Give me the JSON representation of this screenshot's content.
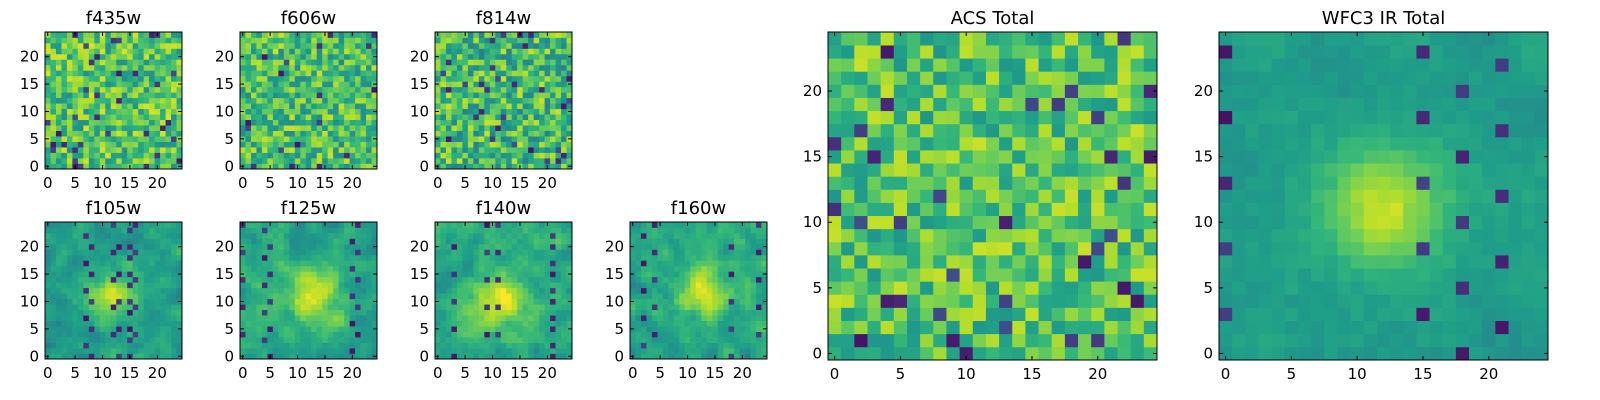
{
  "chart_data": [
    {
      "type": "heatmap",
      "title": "f435w",
      "xlim": [
        -0.5,
        24.5
      ],
      "ylim": [
        -0.5,
        24.5
      ],
      "xticks": [
        0,
        5,
        10,
        15,
        20
      ],
      "yticks": [
        0,
        5,
        10,
        15,
        20
      ],
      "origin": "lower",
      "colormap": "viridis",
      "grid": false,
      "pattern": "noise",
      "center": [
        12,
        12
      ],
      "mean_level": 0.72,
      "spread": 0.22,
      "seed": 11
    },
    {
      "type": "heatmap",
      "title": "f606w",
      "xlim": [
        -0.5,
        24.5
      ],
      "ylim": [
        -0.5,
        24.5
      ],
      "xticks": [
        0,
        5,
        10,
        15,
        20
      ],
      "yticks": [
        0,
        5,
        10,
        15,
        20
      ],
      "origin": "lower",
      "colormap": "viridis",
      "grid": false,
      "pattern": "noise",
      "center": [
        12,
        12
      ],
      "mean_level": 0.7,
      "spread": 0.22,
      "seed": 23
    },
    {
      "type": "heatmap",
      "title": "f814w",
      "xlim": [
        -0.5,
        24.5
      ],
      "ylim": [
        -0.5,
        24.5
      ],
      "xticks": [
        0,
        5,
        10,
        15,
        20
      ],
      "yticks": [
        0,
        5,
        10,
        15,
        20
      ],
      "origin": "lower",
      "colormap": "viridis",
      "grid": false,
      "pattern": "noise",
      "center": [
        14,
        11
      ],
      "mean_level": 0.68,
      "spread": 0.24,
      "seed": 37
    },
    {
      "type": "heatmap",
      "title": "f105w",
      "xlim": [
        -0.5,
        24.5
      ],
      "ylim": [
        -0.5,
        24.5
      ],
      "xticks": [
        0,
        5,
        10,
        15,
        20
      ],
      "yticks": [
        0,
        5,
        10,
        15,
        20
      ],
      "origin": "lower",
      "colormap": "viridis",
      "grid": false,
      "pattern": "source",
      "center": [
        12,
        11
      ],
      "mean_level": 0.55,
      "spread": 0.16,
      "seed": 41
    },
    {
      "type": "heatmap",
      "title": "f125w",
      "xlim": [
        -0.5,
        24.5
      ],
      "ylim": [
        -0.5,
        24.5
      ],
      "xticks": [
        0,
        5,
        10,
        15,
        20
      ],
      "yticks": [
        0,
        5,
        10,
        15,
        20
      ],
      "origin": "lower",
      "colormap": "viridis",
      "grid": false,
      "pattern": "source",
      "center": [
        13,
        11
      ],
      "mean_level": 0.6,
      "spread": 0.16,
      "seed": 53
    },
    {
      "type": "heatmap",
      "title": "f140w",
      "xlim": [
        -0.5,
        24.5
      ],
      "ylim": [
        -0.5,
        24.5
      ],
      "xticks": [
        0,
        5,
        10,
        15,
        20
      ],
      "yticks": [
        0,
        5,
        10,
        15,
        20
      ],
      "origin": "lower",
      "colormap": "viridis",
      "grid": false,
      "pattern": "source",
      "center": [
        11,
        10
      ],
      "mean_level": 0.62,
      "spread": 0.16,
      "seed": 67
    },
    {
      "type": "heatmap",
      "title": "f160w",
      "xlim": [
        -0.5,
        24.5
      ],
      "ylim": [
        -0.5,
        24.5
      ],
      "xticks": [
        0,
        5,
        10,
        15,
        20
      ],
      "yticks": [
        0,
        5,
        10,
        15,
        20
      ],
      "origin": "lower",
      "colormap": "viridis",
      "grid": false,
      "pattern": "source",
      "center": [
        13,
        12
      ],
      "mean_level": 0.6,
      "spread": 0.16,
      "seed": 79
    },
    {
      "type": "heatmap",
      "title": "ACS Total",
      "xlim": [
        -0.5,
        24.5
      ],
      "ylim": [
        -0.5,
        24.5
      ],
      "xticks": [
        0,
        5,
        10,
        15,
        20
      ],
      "yticks": [
        0,
        5,
        10,
        15,
        20
      ],
      "origin": "lower",
      "colormap": "viridis",
      "grid": false,
      "pattern": "noise",
      "center": [
        12,
        12
      ],
      "mean_level": 0.72,
      "spread": 0.2,
      "seed": 97
    },
    {
      "type": "heatmap",
      "title": "WFC3 IR Total",
      "xlim": [
        -0.5,
        24.5
      ],
      "ylim": [
        -0.5,
        24.5
      ],
      "xticks": [
        0,
        5,
        10,
        15,
        20
      ],
      "yticks": [
        0,
        5,
        10,
        15,
        20
      ],
      "origin": "lower",
      "colormap": "viridis",
      "grid": false,
      "pattern": "smooth",
      "center": [
        12,
        11
      ],
      "mean_level": 0.55,
      "spread": 0.1,
      "seed": 113
    }
  ]
}
